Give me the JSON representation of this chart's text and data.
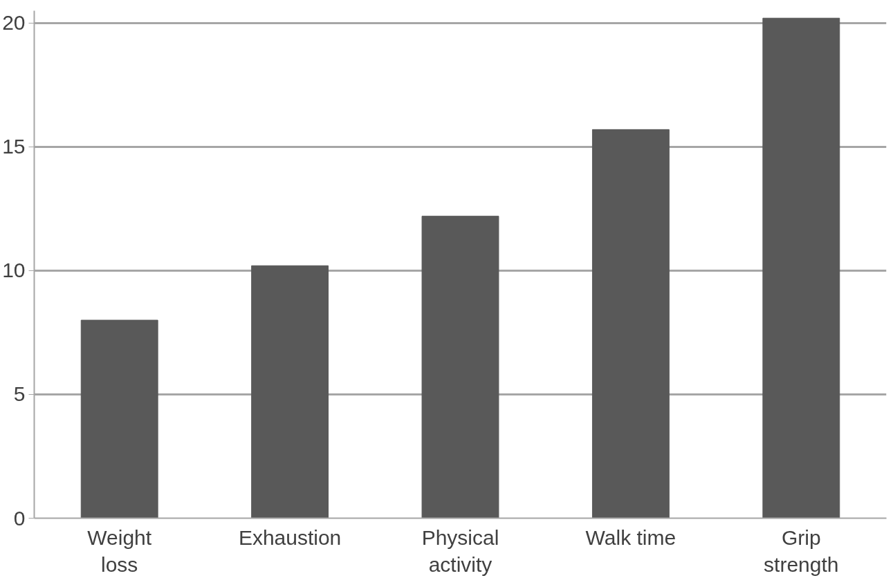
{
  "chart_data": {
    "type": "bar",
    "categories": [
      "Weight loss",
      "Exhaustion",
      "Physical activity",
      "Walk time",
      "Grip strength"
    ],
    "values": [
      8.0,
      10.2,
      12.2,
      15.7,
      20.2
    ],
    "color": "#595959",
    "ylim": [
      0,
      20.5
    ],
    "yticks": [
      0,
      5,
      10,
      15,
      20
    ],
    "grid": "y"
  }
}
